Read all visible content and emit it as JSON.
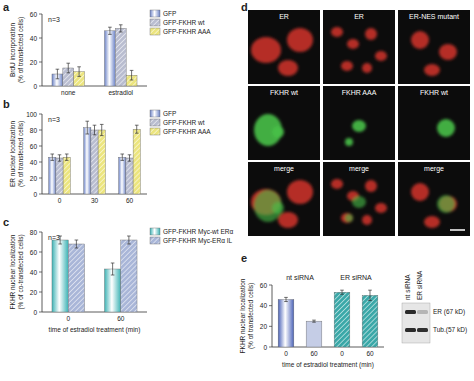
{
  "chart_data": [
    {
      "type": "bar",
      "panel_label": "a",
      "y_label": "BrdU incorporation\n(% of transfected cells)",
      "categories": [
        "none",
        "estradiol"
      ],
      "series": [
        {
          "name": "GFP",
          "color": "#6d84c8",
          "values": [
            10,
            46
          ],
          "errors": [
            4,
            3
          ]
        },
        {
          "name": "GFP-FKHR wt",
          "color": "#b9bdd0",
          "values": [
            15,
            48
          ],
          "errors": [
            4,
            3
          ]
        },
        {
          "name": "GFP-FKHR AAA",
          "color": "#ece57e",
          "values": [
            12,
            9
          ],
          "errors": [
            4,
            4
          ]
        }
      ],
      "ylim": [
        0,
        60
      ],
      "yticks": [
        0,
        20,
        40,
        60
      ],
      "annotations": [
        "n=3"
      ],
      "legend": "upper right"
    },
    {
      "type": "bar",
      "panel_label": "b",
      "y_label": "ER nuclear localization\n(% of transfected cells)",
      "categories": [
        "0",
        "30",
        "60"
      ],
      "series": [
        {
          "name": "GFP",
          "color": "#6d84c8",
          "values": [
            46,
            83,
            46
          ],
          "errors": [
            4,
            8,
            4
          ]
        },
        {
          "name": "GFP-FKHR wt",
          "color": "#b9bdd0",
          "values": [
            45,
            80,
            45
          ],
          "errors": [
            4,
            6,
            4
          ]
        },
        {
          "name": "GFP-FKHR AAA",
          "color": "#ece57e",
          "values": [
            46,
            80,
            81
          ],
          "errors": [
            4,
            7,
            5
          ]
        }
      ],
      "ylim": [
        0,
        100
      ],
      "yticks": [
        0,
        20,
        40,
        60,
        80,
        100
      ],
      "annotations": [
        "n=3"
      ],
      "legend": "upper right"
    },
    {
      "type": "bar",
      "panel_label": "c",
      "y_label": "FKHR nuclear localization\n(% of co-transfected cells)",
      "x_label": "time of estradiol treatment (min)",
      "categories": [
        "0",
        "60"
      ],
      "series": [
        {
          "name": "GFP-FKHR Myc-wt ERα",
          "color": "#3db3b5",
          "values": [
            72,
            43
          ],
          "errors": [
            4,
            6
          ]
        },
        {
          "name": "GFP-FKHR Myc-ERα IL",
          "color": "#a9b6d8",
          "values": [
            68,
            72
          ],
          "errors": [
            4,
            4
          ]
        }
      ],
      "ylim": [
        0,
        80
      ],
      "yticks": [
        0,
        20,
        40,
        60,
        80
      ],
      "annotations": [
        "n=3"
      ],
      "legend": "upper right"
    },
    {
      "type": "bar",
      "panel_label": "e",
      "y_label": "FKHR nuclear localization\n(% of transfected cells)",
      "x_label": "time of estradiol treatment (min)",
      "categories": [
        "0",
        "60",
        "0",
        "60"
      ],
      "group_labels": [
        "nt siRNA",
        "ER siRNA"
      ],
      "values": [
        46,
        25,
        53,
        50
      ],
      "errors": [
        2,
        1,
        2,
        5
      ],
      "colors": [
        "#4a62b8",
        "#c5cde6",
        "#3aa8a8",
        "#3aa8a8"
      ],
      "ylim": [
        0,
        60
      ],
      "yticks": [
        0,
        20,
        40,
        60
      ]
    }
  ],
  "image_panel": {
    "panel_label": "d",
    "rows": [
      [
        "ER",
        "ER",
        "ER-NES mutant"
      ],
      [
        "FKHR wt",
        "FKHR AAA",
        "FKHR wt"
      ],
      [
        "merge",
        "merge",
        "merge"
      ]
    ]
  },
  "blot": {
    "lanes": [
      "nt siRNA",
      "ER siRNA"
    ],
    "bands": [
      "ER (67 kD)",
      "Tub.(57 kD)"
    ]
  }
}
